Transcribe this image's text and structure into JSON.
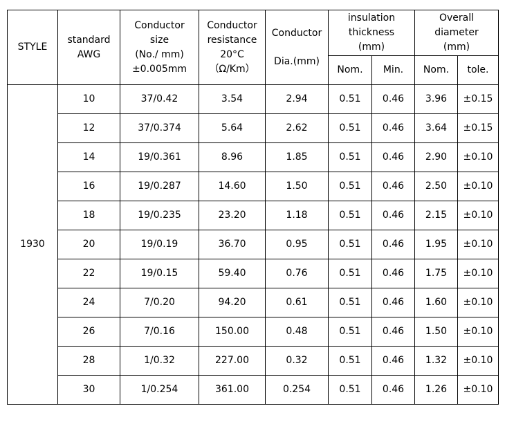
{
  "header": {
    "style": "STYLE",
    "awg": [
      "standard",
      "AWG"
    ],
    "size": [
      "Conductor",
      "size",
      "(No./ mm)",
      "±0.005mm"
    ],
    "resistance": [
      "Conductor",
      "resistance",
      "20°C",
      "（Ω/Km）"
    ],
    "dia": [
      "Conductor",
      "Dia.(mm)"
    ],
    "insulation": [
      "insulation",
      "thickness",
      "(mm)"
    ],
    "overall": [
      "Overall",
      "diameter",
      "(mm)"
    ],
    "sub": [
      "Nom.",
      "Min.",
      "Nom.",
      "tole."
    ]
  },
  "style_value": "1930",
  "rows": [
    [
      "10",
      "37/0.42",
      "3.54",
      "2.94",
      "0.51",
      "0.46",
      "3.96",
      "±0.15"
    ],
    [
      "12",
      "37/0.374",
      "5.64",
      "2.62",
      "0.51",
      "0.46",
      "3.64",
      "±0.15"
    ],
    [
      "14",
      "19/0.361",
      "8.96",
      "1.85",
      "0.51",
      "0.46",
      "2.90",
      "±0.10"
    ],
    [
      "16",
      "19/0.287",
      "14.60",
      "1.50",
      "0.51",
      "0.46",
      "2.50",
      "±0.10"
    ],
    [
      "18",
      "19/0.235",
      "23.20",
      "1.18",
      "0.51",
      "0.46",
      "2.15",
      "±0.10"
    ],
    [
      "20",
      "19/0.19",
      "36.70",
      "0.95",
      "0.51",
      "0.46",
      "1.95",
      "±0.10"
    ],
    [
      "22",
      "19/0.15",
      "59.40",
      "0.76",
      "0.51",
      "0.46",
      "1.75",
      "±0.10"
    ],
    [
      "24",
      "7/0.20",
      "94.20",
      "0.61",
      "0.51",
      "0.46",
      "1.60",
      "±0.10"
    ],
    [
      "26",
      "7/0.16",
      "150.00",
      "0.48",
      "0.51",
      "0.46",
      "1.50",
      "±0.10"
    ],
    [
      "28",
      "1/0.32",
      "227.00",
      "0.32",
      "0.51",
      "0.46",
      "1.32",
      "±0.10"
    ],
    [
      "30",
      "1/0.254",
      "361.00",
      "0.254",
      "0.51",
      "0.46",
      "1.26",
      "±0.10"
    ]
  ]
}
